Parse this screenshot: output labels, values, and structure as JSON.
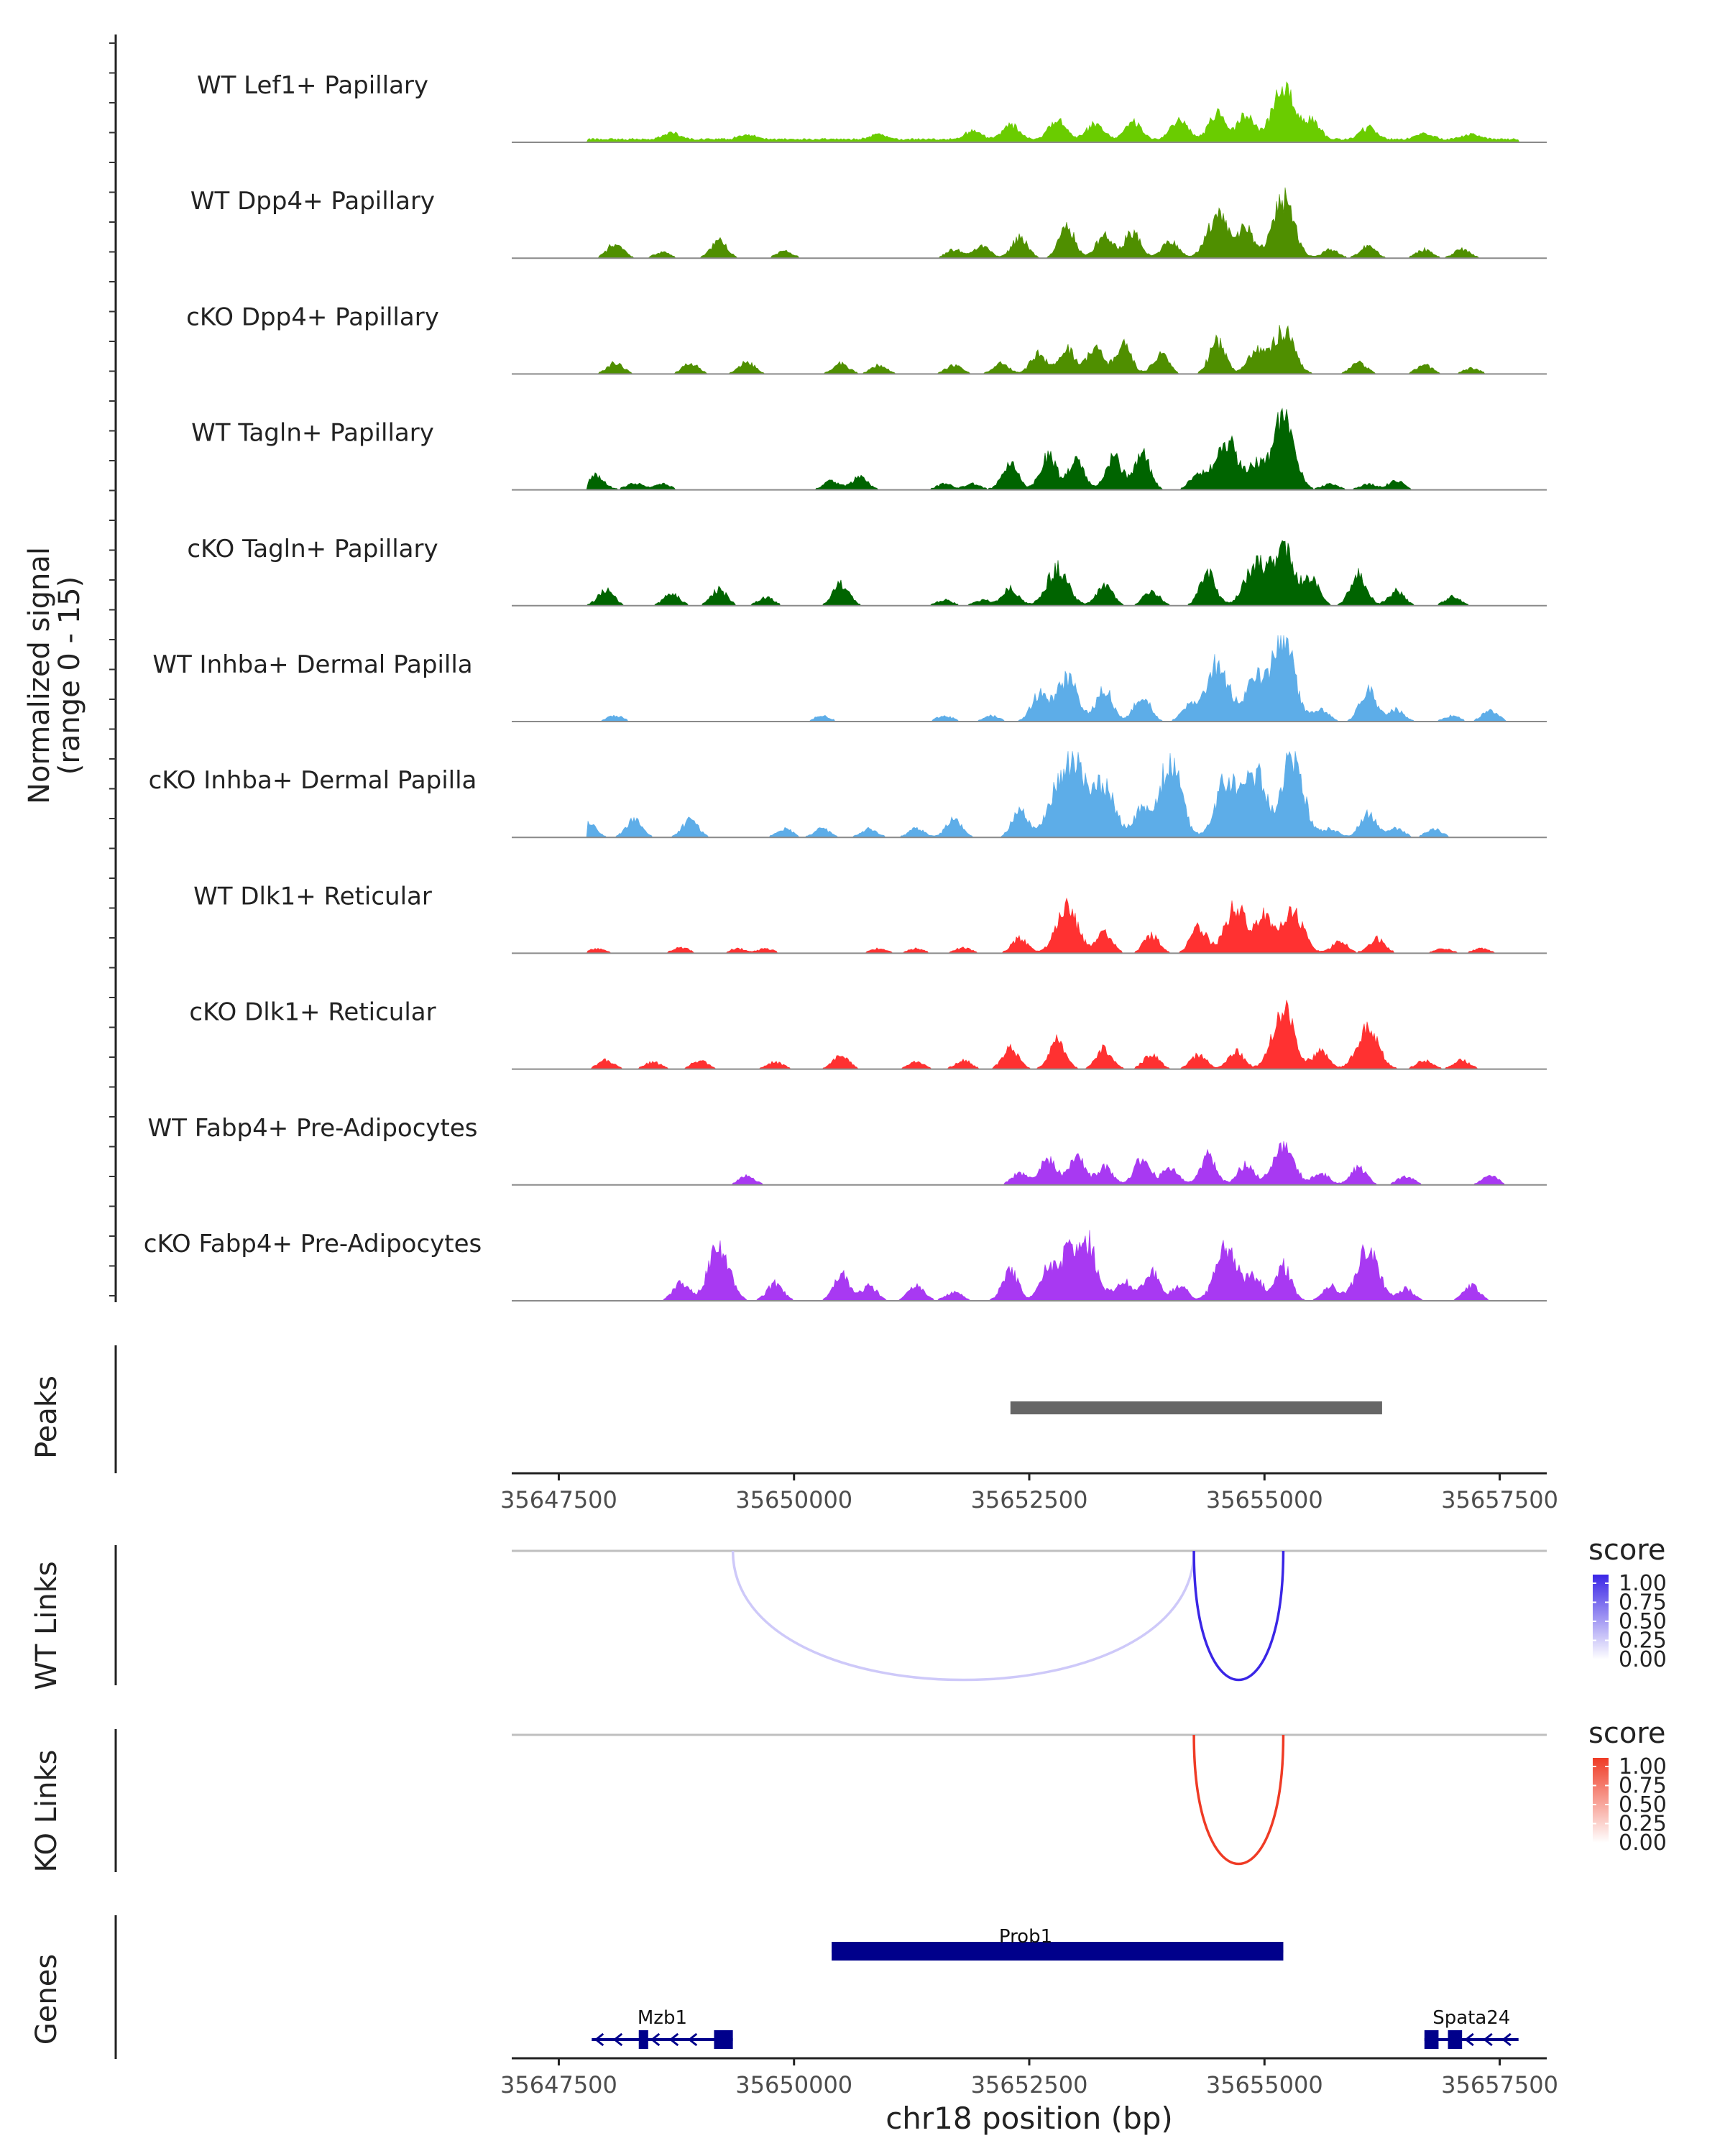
{
  "chart_data": {
    "type": "area",
    "title": "",
    "region": "chr18",
    "xlim": [
      35647000,
      35658000
    ],
    "xticks": [
      {
        "value": 35647500,
        "label": "35647500"
      },
      {
        "value": 35650000,
        "label": "35650000"
      },
      {
        "value": 35652500,
        "label": "35652500"
      },
      {
        "value": 35655000,
        "label": "35655000"
      },
      {
        "value": 35657500,
        "label": "35657500"
      }
    ],
    "xlabel": "chr18 position (bp)",
    "coverage": {
      "ylabel_line1": "Normalized signal",
      "ylabel_line2": "(range 0 - 15)",
      "ylim": [
        0,
        15
      ],
      "tracks": [
        {
          "name": "WT Lef1+ Papillary",
          "color": "#6ACC00",
          "profile": "lef",
          "peaks": [
            [
              35648700,
              1.2
            ],
            [
              35649500,
              0.8
            ],
            [
              35650900,
              0.9
            ],
            [
              35651900,
              1.5
            ],
            [
              35652300,
              2.5
            ],
            [
              35652800,
              3.5
            ],
            [
              35653200,
              2.8
            ],
            [
              35653600,
              2.9
            ],
            [
              35654100,
              3.5
            ],
            [
              35654500,
              4.4
            ],
            [
              35654800,
              4.2
            ],
            [
              35655200,
              8.8
            ],
            [
              35655500,
              3.2
            ],
            [
              35656100,
              2.0
            ],
            [
              35656700,
              1.0
            ],
            [
              35657200,
              1.0
            ]
          ]
        },
        {
          "name": "WT Dpp4+ Papillary",
          "color": "#4F8F00",
          "profile": "dpp",
          "peaks": [
            [
              35648100,
              2.5
            ],
            [
              35648600,
              1.0
            ],
            [
              35649200,
              3.0
            ],
            [
              35649900,
              1.2
            ],
            [
              35651700,
              1.5
            ],
            [
              35652000,
              2.0
            ],
            [
              35652400,
              3.5
            ],
            [
              35652900,
              5.3
            ],
            [
              35653300,
              4.0
            ],
            [
              35653600,
              4.6
            ],
            [
              35654000,
              3.0
            ],
            [
              35654500,
              7.2
            ],
            [
              35654800,
              5.0
            ],
            [
              35655200,
              10.0
            ],
            [
              35655700,
              1.5
            ],
            [
              35656100,
              2.0
            ],
            [
              35656700,
              1.5
            ],
            [
              35657100,
              1.5
            ]
          ]
        },
        {
          "name": "cKO Dpp4+ Papillary",
          "color": "#4F8F00",
          "profile": "dpp",
          "peaks": [
            [
              35648100,
              2.0
            ],
            [
              35648900,
              1.8
            ],
            [
              35649500,
              2.0
            ],
            [
              35650500,
              1.8
            ],
            [
              35650900,
              1.5
            ],
            [
              35651700,
              1.5
            ],
            [
              35652200,
              1.8
            ],
            [
              35652600,
              3.5
            ],
            [
              35652900,
              4.2
            ],
            [
              35653200,
              4.4
            ],
            [
              35653500,
              5.0
            ],
            [
              35653900,
              3.2
            ],
            [
              35654500,
              5.5
            ],
            [
              35654900,
              4.0
            ],
            [
              35655200,
              7.5
            ],
            [
              35656000,
              2.0
            ],
            [
              35656700,
              1.5
            ],
            [
              35657200,
              1.0
            ]
          ]
        },
        {
          "name": "WT Tagln+ Papillary",
          "color": "#006400",
          "profile": "tagln",
          "peaks": [
            [
              35647900,
              2.6
            ],
            [
              35648300,
              1.2
            ],
            [
              35648600,
              1.0
            ],
            [
              35650400,
              1.5
            ],
            [
              35650700,
              2.2
            ],
            [
              35651600,
              1.0
            ],
            [
              35651900,
              1.0
            ],
            [
              35652300,
              4.5
            ],
            [
              35652700,
              6.0
            ],
            [
              35653000,
              4.7
            ],
            [
              35653400,
              5.5
            ],
            [
              35653700,
              6.0
            ],
            [
              35654300,
              3.0
            ],
            [
              35654600,
              8.5
            ],
            [
              35654900,
              4.0
            ],
            [
              35655200,
              12.5
            ],
            [
              35655700,
              1.0
            ],
            [
              35656100,
              1.0
            ],
            [
              35656400,
              1.6
            ]
          ]
        },
        {
          "name": "cKO Tagln+ Papillary",
          "color": "#006400",
          "profile": "tagln",
          "peaks": [
            [
              35648000,
              2.7
            ],
            [
              35648700,
              2.0
            ],
            [
              35649200,
              2.8
            ],
            [
              35649700,
              1.5
            ],
            [
              35650500,
              3.8
            ],
            [
              35651600,
              1.0
            ],
            [
              35652000,
              1.0
            ],
            [
              35652300,
              3.0
            ],
            [
              35652800,
              6.5
            ],
            [
              35653300,
              3.5
            ],
            [
              35653800,
              2.5
            ],
            [
              35654400,
              5.5
            ],
            [
              35654900,
              7.0
            ],
            [
              35655200,
              9.5
            ],
            [
              35655500,
              4.5
            ],
            [
              35656000,
              5.5
            ],
            [
              35656400,
              2.5
            ],
            [
              35657000,
              1.5
            ]
          ]
        },
        {
          "name": "WT Inhba+ Dermal Papilla",
          "color": "#5DADE8",
          "profile": "inhba",
          "peaks": [
            [
              35648100,
              1.0
            ],
            [
              35650300,
              1.0
            ],
            [
              35651600,
              1.0
            ],
            [
              35652100,
              1.0
            ],
            [
              35652600,
              4.5
            ],
            [
              35652900,
              7.5
            ],
            [
              35653300,
              5.5
            ],
            [
              35653700,
              4.5
            ],
            [
              35654200,
              2.5
            ],
            [
              35654500,
              10.0
            ],
            [
              35654900,
              7.0
            ],
            [
              35655200,
              14.5
            ],
            [
              35655600,
              2.0
            ],
            [
              35656100,
              5.5
            ],
            [
              35656400,
              2.0
            ],
            [
              35657000,
              1.0
            ],
            [
              35657400,
              2.0
            ]
          ]
        },
        {
          "name": "cKO Inhba+ Dermal Papilla",
          "color": "#5DADE8",
          "profile": "inhba",
          "peaks": [
            [
              35647800,
              3.0
            ],
            [
              35648300,
              3.0
            ],
            [
              35648900,
              3.0
            ],
            [
              35649900,
              1.5
            ],
            [
              35650300,
              1.5
            ],
            [
              35650800,
              1.5
            ],
            [
              35651300,
              1.5
            ],
            [
              35651700,
              3.0
            ],
            [
              35652400,
              4.5
            ],
            [
              35652800,
              7.5
            ],
            [
              35653000,
              12.0
            ],
            [
              35653300,
              9.0
            ],
            [
              35653700,
              5.0
            ],
            [
              35654000,
              13.0
            ],
            [
              35654600,
              10.0
            ],
            [
              35654900,
              11.0
            ],
            [
              35655300,
              14.0
            ],
            [
              35655700,
              1.5
            ],
            [
              35656100,
              4.0
            ],
            [
              35656400,
              1.5
            ],
            [
              35656800,
              1.5
            ]
          ]
        },
        {
          "name": "WT Dlk1+ Reticular",
          "color": "#FF3131",
          "profile": "dlk",
          "peaks": [
            [
              35647900,
              0.8
            ],
            [
              35648800,
              1.0
            ],
            [
              35649400,
              0.8
            ],
            [
              35649700,
              0.8
            ],
            [
              35650900,
              0.8
            ],
            [
              35651300,
              0.8
            ],
            [
              35651800,
              1.0
            ],
            [
              35652400,
              2.5
            ],
            [
              35652900,
              8.0
            ],
            [
              35653300,
              3.5
            ],
            [
              35653800,
              3.0
            ],
            [
              35654300,
              4.5
            ],
            [
              35654700,
              8.0
            ],
            [
              35655000,
              6.0
            ],
            [
              35655300,
              7.0
            ],
            [
              35655800,
              2.0
            ],
            [
              35656200,
              2.5
            ],
            [
              35656900,
              0.8
            ],
            [
              35657300,
              0.8
            ]
          ]
        },
        {
          "name": "cKO Dlk1+ Reticular",
          "color": "#FF3131",
          "profile": "dlk",
          "peaks": [
            [
              35648000,
              1.5
            ],
            [
              35648500,
              1.2
            ],
            [
              35649000,
              1.5
            ],
            [
              35649800,
              1.2
            ],
            [
              35650500,
              2.5
            ],
            [
              35651300,
              1.2
            ],
            [
              35651800,
              1.5
            ],
            [
              35652300,
              3.5
            ],
            [
              35652800,
              5.0
            ],
            [
              35653300,
              3.5
            ],
            [
              35653800,
              2.5
            ],
            [
              35654300,
              2.5
            ],
            [
              35654700,
              3.0
            ],
            [
              35655200,
              10.5
            ],
            [
              35655600,
              3.0
            ],
            [
              35656100,
              7.0
            ],
            [
              35656700,
              1.5
            ],
            [
              35657100,
              1.5
            ]
          ]
        },
        {
          "name": "WT Fabp4+ Pre-Adipocytes",
          "color": "#A839F2",
          "profile": "fabp",
          "peaks": [
            [
              35649500,
              1.5
            ],
            [
              35652400,
              2.0
            ],
            [
              35652700,
              4.5
            ],
            [
              35653000,
              5.0
            ],
            [
              35653300,
              3.0
            ],
            [
              35653700,
              4.5
            ],
            [
              35654000,
              3.0
            ],
            [
              35654400,
              5.0
            ],
            [
              35654800,
              3.5
            ],
            [
              35655200,
              6.5
            ],
            [
              35655600,
              2.0
            ],
            [
              35656000,
              3.0
            ],
            [
              35656500,
              1.5
            ],
            [
              35657400,
              1.5
            ]
          ]
        },
        {
          "name": "cKO Fabp4+ Pre-Adipocytes",
          "color": "#A839F2",
          "profile": "fabp",
          "peaks": [
            [
              35648800,
              3.0
            ],
            [
              35649200,
              9.0
            ],
            [
              35649800,
              3.0
            ],
            [
              35650500,
              4.5
            ],
            [
              35650800,
              2.5
            ],
            [
              35651300,
              2.5
            ],
            [
              35651700,
              1.5
            ],
            [
              35652300,
              5.0
            ],
            [
              35652700,
              5.5
            ],
            [
              35652900,
              6.0
            ],
            [
              35653100,
              10.5
            ],
            [
              35653500,
              3.5
            ],
            [
              35653800,
              5.0
            ],
            [
              35654100,
              2.5
            ],
            [
              35654600,
              9.5
            ],
            [
              35654900,
              4.0
            ],
            [
              35655200,
              6.0
            ],
            [
              35655700,
              2.5
            ],
            [
              35656100,
              9.0
            ],
            [
              35656500,
              2.0
            ],
            [
              35657200,
              2.5
            ]
          ]
        }
      ]
    },
    "peaks_track": {
      "label": "Peaks",
      "intervals": [
        {
          "start": 35652300,
          "end": 35656250
        }
      ]
    },
    "links": [
      {
        "label": "WT Links",
        "legend_title": "score",
        "color_high": "#3A26E6",
        "color_low": "#FFFFFF",
        "legend_ticks": [
          "1.00",
          "0.75",
          "0.50",
          "0.25",
          "0.00"
        ],
        "arcs": [
          {
            "start": 35649350,
            "end": 35654250,
            "score": 0.25
          },
          {
            "start": 35654250,
            "end": 35655200,
            "score": 1.0
          }
        ]
      },
      {
        "label": "KO Links",
        "legend_title": "score",
        "color_high": "#EF3B25",
        "color_low": "#FFFFFF",
        "legend_ticks": [
          "1.00",
          "0.75",
          "0.50",
          "0.25",
          "0.00"
        ],
        "arcs": [
          {
            "start": 35654250,
            "end": 35655200,
            "score": 1.0
          }
        ]
      }
    ],
    "genes": {
      "label": "Genes",
      "color": "#00008B",
      "items": [
        {
          "name": "Prob1",
          "start": 35650400,
          "end": 35655200,
          "strand": "+",
          "row": 0,
          "exons": [
            [
              35650400,
              35655200
            ]
          ]
        },
        {
          "name": "Mzb1",
          "start": 35647850,
          "end": 35649350,
          "strand": "-",
          "row": 1,
          "exons": [
            [
              35648350,
              35648450
            ],
            [
              35649150,
              35649350
            ]
          ]
        },
        {
          "name": "Spata24",
          "start": 35656700,
          "end": 35657700,
          "strand": "-",
          "row": 1,
          "exons": [
            [
              35656700,
              35656850
            ],
            [
              35656950,
              35657100
            ]
          ]
        }
      ]
    }
  }
}
